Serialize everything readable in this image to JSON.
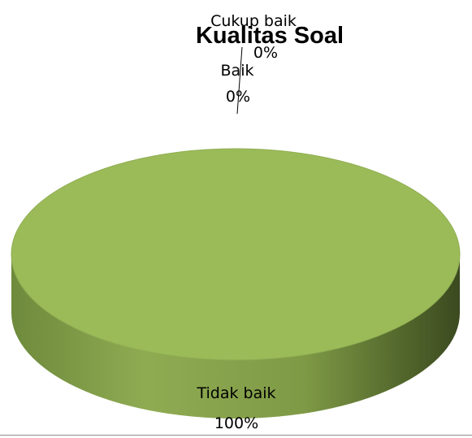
{
  "chart_data": {
    "type": "pie",
    "style": "3d",
    "title": "Kualitas Soal",
    "categories": [
      "Cukup baik",
      "Baik",
      "Tidak baik"
    ],
    "values": [
      0,
      0,
      100
    ],
    "value_labels": [
      "0%",
      "0%",
      "100%"
    ],
    "slice_colors": {
      "top": "#9bbb59",
      "side_light": "#8aa64f",
      "side_dark": "#3f4f22",
      "edge": "#7f9a46"
    },
    "legend": "none"
  }
}
